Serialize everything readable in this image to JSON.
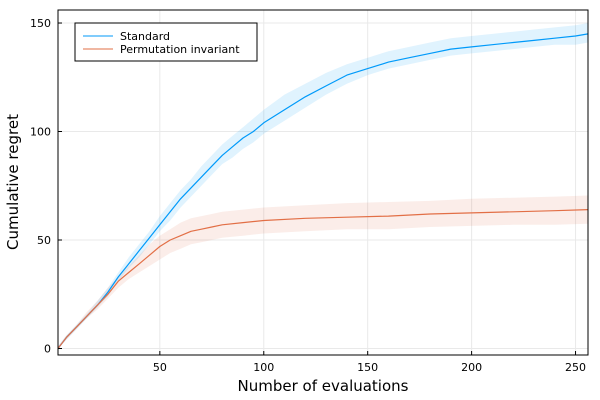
{
  "chart_data": {
    "type": "line",
    "title": "",
    "xlabel": "Number of evaluations",
    "ylabel": "Cumulative regret",
    "xlim": [
      1,
      256
    ],
    "ylim": [
      -3,
      156
    ],
    "xticks": [
      50,
      100,
      150,
      200,
      250
    ],
    "yticks": [
      0,
      50,
      100,
      150
    ],
    "grid": true,
    "legend_position": "top-left",
    "series": [
      {
        "name": "Standard",
        "color": "#009AFA",
        "band_color": "#009AFA",
        "x": [
          1,
          5,
          10,
          15,
          20,
          25,
          30,
          35,
          40,
          45,
          50,
          55,
          60,
          65,
          70,
          75,
          80,
          85,
          90,
          95,
          100,
          110,
          120,
          130,
          140,
          150,
          160,
          170,
          180,
          190,
          200,
          210,
          220,
          230,
          240,
          250,
          256
        ],
        "y": [
          0,
          5,
          10,
          15,
          20,
          26,
          33,
          39,
          45,
          51,
          57,
          63,
          69,
          74,
          79,
          84,
          89,
          93,
          97,
          100,
          104,
          110,
          116,
          121,
          126,
          129,
          132,
          134,
          136,
          138,
          139,
          140,
          141,
          142,
          143,
          144,
          145
        ],
        "lower": [
          0,
          4,
          9,
          14,
          19,
          24,
          31,
          37,
          42,
          48,
          54,
          59,
          65,
          70,
          75,
          80,
          85,
          88,
          92,
          95,
          99,
          105,
          111,
          117,
          122,
          126,
          129,
          131,
          133,
          135,
          136,
          137,
          138,
          139,
          140,
          140,
          141
        ],
        "upper": [
          1,
          6,
          11,
          16,
          22,
          28,
          35,
          42,
          48,
          54,
          61,
          67,
          73,
          78,
          84,
          89,
          94,
          98,
          102,
          106,
          110,
          117,
          122,
          127,
          131,
          134,
          137,
          139,
          141,
          143,
          144,
          145,
          146,
          147,
          148,
          149,
          150
        ]
      },
      {
        "name": "Permutation invariant",
        "color": "#E26F46",
        "band_color": "#E26F46",
        "x": [
          1,
          5,
          10,
          15,
          20,
          25,
          30,
          35,
          40,
          45,
          50,
          55,
          60,
          65,
          70,
          75,
          80,
          90,
          100,
          120,
          140,
          160,
          180,
          200,
          220,
          240,
          256
        ],
        "y": [
          0,
          5,
          10,
          15,
          20,
          25,
          31,
          35,
          39,
          43,
          47,
          50,
          52,
          54,
          55,
          56,
          57,
          58,
          59,
          60,
          60.5,
          61,
          62,
          62.5,
          63,
          63.5,
          64
        ],
        "lower": [
          0,
          4,
          9,
          14,
          18,
          23,
          28,
          32,
          35,
          38,
          41,
          44,
          46,
          48,
          49,
          50,
          51,
          52,
          53,
          54,
          55,
          55,
          56,
          56.5,
          57,
          57,
          57.5
        ],
        "upper": [
          1,
          6,
          11,
          17,
          22,
          28,
          33,
          38,
          43,
          48,
          52,
          55,
          58,
          60,
          61,
          62,
          63,
          64,
          65,
          66,
          67,
          67.5,
          68,
          69,
          69.5,
          70,
          70.5
        ]
      }
    ]
  }
}
